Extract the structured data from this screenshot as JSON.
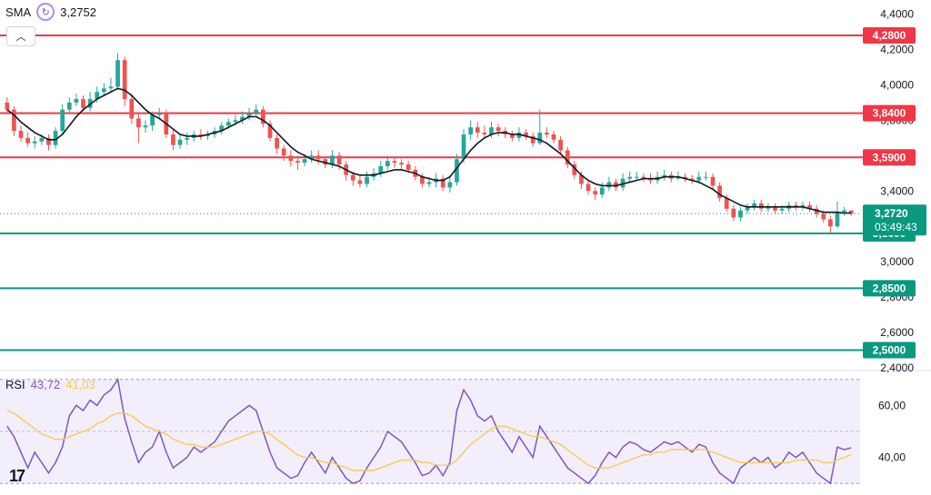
{
  "legend": {
    "indicator": "SMA",
    "value": "3,2752",
    "icon": "refresh-icon"
  },
  "rsi_legend": {
    "label": "RSI",
    "value1": "43,72",
    "value2": "41,03"
  },
  "logo": "17",
  "colors": {
    "up": "#26a69a",
    "down": "#ef5350",
    "resistance": "#f23645",
    "support": "#089981",
    "sma": "#131722",
    "rsi": "#7e57c2",
    "rsi_ma": "#f7c948",
    "rsi_bg": "#f3eefc",
    "current": "#089981"
  },
  "chart_data": [
    {
      "type": "candlestick",
      "y_ticks": [
        "4,4000",
        "4,2000",
        "4,0000",
        "3,8000",
        "3,6000",
        "3,4000",
        "3,0000",
        "2,8000",
        "2,6000",
        "2,4000"
      ],
      "y_tick_values": [
        4.4,
        4.2,
        4.0,
        3.8,
        3.6,
        3.4,
        3.0,
        2.8,
        2.6,
        2.4
      ],
      "ylim": [
        2.4,
        4.48
      ],
      "resistance_lines": [
        {
          "label": "4,2800",
          "value": 4.28
        },
        {
          "label": "3,8400",
          "value": 3.84
        },
        {
          "label": "3,5900",
          "value": 3.59
        }
      ],
      "support_lines": [
        {
          "label": "3,1600",
          "value": 3.16
        },
        {
          "label": "2,8500",
          "value": 2.85
        },
        {
          "label": "2,5000",
          "value": 2.5
        }
      ],
      "current_price": {
        "label": "3,2720",
        "value": 3.272,
        "countdown": "03:49:43"
      },
      "close": [
        3.86,
        3.74,
        3.7,
        3.67,
        3.68,
        3.7,
        3.66,
        3.74,
        3.86,
        3.9,
        3.92,
        3.87,
        3.92,
        3.96,
        3.98,
        3.99,
        4.14,
        3.92,
        3.81,
        3.76,
        3.77,
        3.83,
        3.84,
        3.72,
        3.66,
        3.69,
        3.7,
        3.72,
        3.71,
        3.72,
        3.74,
        3.77,
        3.79,
        3.8,
        3.82,
        3.84,
        3.86,
        3.78,
        3.7,
        3.64,
        3.6,
        3.57,
        3.56,
        3.58,
        3.6,
        3.58,
        3.55,
        3.6,
        3.55,
        3.49,
        3.46,
        3.44,
        3.48,
        3.5,
        3.54,
        3.57,
        3.56,
        3.55,
        3.52,
        3.48,
        3.44,
        3.45,
        3.47,
        3.42,
        3.45,
        3.58,
        3.72,
        3.76,
        3.73,
        3.72,
        3.76,
        3.74,
        3.72,
        3.7,
        3.73,
        3.71,
        3.67,
        3.73,
        3.72,
        3.69,
        3.63,
        3.55,
        3.49,
        3.44,
        3.4,
        3.38,
        3.42,
        3.45,
        3.42,
        3.47,
        3.48,
        3.48,
        3.47,
        3.46,
        3.48,
        3.49,
        3.47,
        3.48,
        3.47,
        3.46,
        3.48,
        3.48,
        3.43,
        3.36,
        3.3,
        3.25,
        3.29,
        3.31,
        3.33,
        3.3,
        3.31,
        3.29,
        3.3,
        3.32,
        3.31,
        3.32,
        3.3,
        3.27,
        3.24,
        3.2,
        3.28,
        3.29,
        3.272
      ],
      "open": [
        3.9,
        3.86,
        3.74,
        3.7,
        3.67,
        3.68,
        3.7,
        3.66,
        3.74,
        3.86,
        3.9,
        3.92,
        3.87,
        3.92,
        3.96,
        3.98,
        3.99,
        4.14,
        3.92,
        3.81,
        3.76,
        3.77,
        3.83,
        3.84,
        3.72,
        3.66,
        3.69,
        3.7,
        3.72,
        3.71,
        3.72,
        3.74,
        3.77,
        3.79,
        3.8,
        3.82,
        3.84,
        3.86,
        3.78,
        3.7,
        3.64,
        3.6,
        3.57,
        3.56,
        3.58,
        3.6,
        3.58,
        3.55,
        3.6,
        3.55,
        3.49,
        3.46,
        3.44,
        3.48,
        3.5,
        3.54,
        3.57,
        3.56,
        3.55,
        3.52,
        3.48,
        3.44,
        3.45,
        3.47,
        3.42,
        3.45,
        3.58,
        3.72,
        3.76,
        3.73,
        3.72,
        3.76,
        3.74,
        3.72,
        3.7,
        3.73,
        3.71,
        3.67,
        3.73,
        3.72,
        3.69,
        3.63,
        3.55,
        3.49,
        3.44,
        3.4,
        3.38,
        3.42,
        3.45,
        3.42,
        3.47,
        3.48,
        3.48,
        3.47,
        3.46,
        3.48,
        3.49,
        3.47,
        3.48,
        3.47,
        3.46,
        3.48,
        3.48,
        3.43,
        3.36,
        3.3,
        3.25,
        3.29,
        3.31,
        3.33,
        3.3,
        3.31,
        3.29,
        3.3,
        3.32,
        3.31,
        3.32,
        3.3,
        3.27,
        3.24,
        3.2,
        3.28,
        3.29
      ],
      "high": [
        3.93,
        3.88,
        3.77,
        3.73,
        3.71,
        3.72,
        3.72,
        3.76,
        3.89,
        3.93,
        3.95,
        3.94,
        3.96,
        3.99,
        4.01,
        4.04,
        4.18,
        4.16,
        3.95,
        3.84,
        3.8,
        3.85,
        3.87,
        3.86,
        3.75,
        3.72,
        3.73,
        3.74,
        3.75,
        3.74,
        3.76,
        3.79,
        3.81,
        3.83,
        3.85,
        3.87,
        3.89,
        3.88,
        3.8,
        3.72,
        3.66,
        3.63,
        3.6,
        3.61,
        3.63,
        3.63,
        3.6,
        3.63,
        3.62,
        3.57,
        3.51,
        3.49,
        3.51,
        3.53,
        3.57,
        3.6,
        3.59,
        3.58,
        3.57,
        3.54,
        3.5,
        3.48,
        3.5,
        3.49,
        3.48,
        3.61,
        3.75,
        3.8,
        3.79,
        3.77,
        3.79,
        3.78,
        3.76,
        3.74,
        3.76,
        3.75,
        3.73,
        3.86,
        3.76,
        3.74,
        3.71,
        3.65,
        3.57,
        3.51,
        3.46,
        3.42,
        3.45,
        3.48,
        3.47,
        3.5,
        3.51,
        3.51,
        3.5,
        3.5,
        3.51,
        3.52,
        3.51,
        3.51,
        3.5,
        3.49,
        3.51,
        3.51,
        3.5,
        3.45,
        3.38,
        3.32,
        3.31,
        3.33,
        3.35,
        3.35,
        3.33,
        3.33,
        3.32,
        3.34,
        3.34,
        3.34,
        3.34,
        3.32,
        3.29,
        3.26,
        3.34,
        3.31,
        3.29
      ],
      "low": [
        3.84,
        3.71,
        3.68,
        3.65,
        3.64,
        3.66,
        3.63,
        3.64,
        3.72,
        3.84,
        3.88,
        3.85,
        3.85,
        3.9,
        3.94,
        3.96,
        3.97,
        3.88,
        3.78,
        3.67,
        3.73,
        3.74,
        3.81,
        3.7,
        3.63,
        3.64,
        3.66,
        3.68,
        3.69,
        3.69,
        3.7,
        3.72,
        3.75,
        3.77,
        3.78,
        3.8,
        3.82,
        3.76,
        3.68,
        3.61,
        3.57,
        3.54,
        3.52,
        3.54,
        3.56,
        3.55,
        3.53,
        3.53,
        3.52,
        3.46,
        3.43,
        3.42,
        3.42,
        3.46,
        3.48,
        3.52,
        3.53,
        3.52,
        3.5,
        3.46,
        3.42,
        3.42,
        3.42,
        3.4,
        3.39,
        3.43,
        3.56,
        3.69,
        3.7,
        3.7,
        3.7,
        3.71,
        3.7,
        3.68,
        3.68,
        3.69,
        3.65,
        3.66,
        3.7,
        3.67,
        3.61,
        3.53,
        3.47,
        3.41,
        3.38,
        3.35,
        3.36,
        3.4,
        3.4,
        3.4,
        3.45,
        3.46,
        3.45,
        3.44,
        3.44,
        3.46,
        3.45,
        3.46,
        3.45,
        3.44,
        3.44,
        3.46,
        3.41,
        3.34,
        3.28,
        3.23,
        3.23,
        3.27,
        3.29,
        3.28,
        3.28,
        3.27,
        3.27,
        3.28,
        3.29,
        3.29,
        3.28,
        3.25,
        3.22,
        3.16,
        3.19,
        3.26,
        3.26
      ],
      "sma": [
        3.86,
        3.83,
        3.79,
        3.76,
        3.73,
        3.71,
        3.69,
        3.69,
        3.72,
        3.77,
        3.82,
        3.86,
        3.89,
        3.92,
        3.94,
        3.96,
        3.98,
        3.97,
        3.94,
        3.9,
        3.86,
        3.83,
        3.81,
        3.78,
        3.75,
        3.72,
        3.71,
        3.71,
        3.71,
        3.72,
        3.73,
        3.74,
        3.76,
        3.78,
        3.8,
        3.82,
        3.82,
        3.8,
        3.77,
        3.73,
        3.69,
        3.65,
        3.62,
        3.6,
        3.58,
        3.57,
        3.56,
        3.55,
        3.54,
        3.52,
        3.5,
        3.49,
        3.49,
        3.49,
        3.5,
        3.51,
        3.52,
        3.52,
        3.51,
        3.5,
        3.48,
        3.47,
        3.46,
        3.46,
        3.48,
        3.53,
        3.58,
        3.63,
        3.67,
        3.7,
        3.72,
        3.73,
        3.73,
        3.72,
        3.72,
        3.71,
        3.7,
        3.69,
        3.67,
        3.64,
        3.61,
        3.57,
        3.53,
        3.49,
        3.46,
        3.44,
        3.43,
        3.43,
        3.43,
        3.44,
        3.45,
        3.46,
        3.47,
        3.47,
        3.47,
        3.48,
        3.48,
        3.48,
        3.47,
        3.46,
        3.45,
        3.43,
        3.41,
        3.38,
        3.36,
        3.34,
        3.32,
        3.31,
        3.31,
        3.31,
        3.31,
        3.31,
        3.31,
        3.31,
        3.31,
        3.31,
        3.3,
        3.29,
        3.28,
        3.28,
        3.28,
        3.275,
        3.2752
      ]
    },
    {
      "type": "line",
      "name": "RSI",
      "y_ticks": [
        "60,00",
        "40,00"
      ],
      "y_tick_values": [
        60,
        40
      ],
      "ylim": [
        28,
        72
      ],
      "band": [
        30,
        70
      ],
      "series": [
        {
          "name": "RSI",
          "values": [
            52,
            48,
            42,
            36,
            42,
            38,
            34,
            38,
            44,
            56,
            60,
            58,
            62,
            60,
            64,
            66,
            70,
            55,
            46,
            38,
            42,
            44,
            50,
            42,
            36,
            38,
            40,
            44,
            42,
            44,
            46,
            50,
            54,
            56,
            58,
            60,
            58,
            50,
            42,
            36,
            34,
            32,
            33,
            38,
            42,
            38,
            34,
            40,
            36,
            32,
            30,
            31,
            36,
            40,
            44,
            50,
            48,
            46,
            42,
            38,
            33,
            34,
            37,
            33,
            38,
            58,
            66,
            62,
            56,
            54,
            56,
            50,
            46,
            42,
            48,
            44,
            40,
            52,
            48,
            44,
            40,
            36,
            34,
            32,
            30,
            33,
            38,
            42,
            40,
            44,
            46,
            45,
            43,
            42,
            44,
            46,
            45,
            46,
            44,
            42,
            45,
            44,
            38,
            34,
            32,
            30,
            36,
            38,
            40,
            38,
            40,
            36,
            38,
            42,
            40,
            42,
            38,
            34,
            32,
            30,
            44,
            43,
            43.72
          ]
        },
        {
          "name": "RSI MA",
          "values": [
            58,
            57,
            55,
            53,
            51,
            49,
            48,
            47,
            47,
            48,
            49,
            50,
            51,
            53,
            54,
            56,
            57,
            57,
            56,
            54,
            52,
            51,
            50,
            49,
            47,
            46,
            45,
            45,
            44,
            44,
            44,
            45,
            46,
            47,
            48,
            49,
            50,
            50,
            49,
            47,
            45,
            43,
            41,
            40,
            40,
            39,
            38,
            38,
            37,
            36,
            35,
            35,
            35,
            35,
            36,
            37,
            38,
            39,
            39,
            39,
            38,
            38,
            37,
            37,
            37,
            39,
            42,
            45,
            47,
            49,
            51,
            52,
            52,
            51,
            50,
            49,
            48,
            48,
            47,
            46,
            45,
            43,
            41,
            39,
            37,
            36,
            36,
            36,
            37,
            38,
            39,
            40,
            41,
            41,
            42,
            42,
            43,
            43,
            43,
            43,
            43,
            43,
            42,
            41,
            40,
            39,
            38,
            38,
            38,
            38,
            38,
            38,
            38,
            38,
            39,
            39,
            39,
            39,
            38,
            38,
            39,
            40,
            41.03
          ]
        }
      ]
    }
  ]
}
